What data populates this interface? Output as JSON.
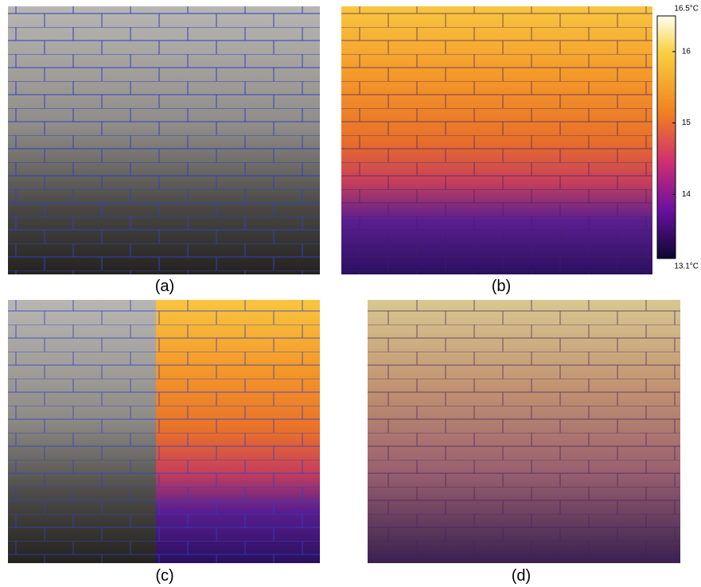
{
  "panels": [
    {
      "label": "(a)"
    },
    {
      "label": "(b)"
    },
    {
      "label": "(c)"
    },
    {
      "label": "(d)"
    }
  ],
  "colorbar": {
    "lim": [
      13.1,
      16.5
    ],
    "ticks": [
      {
        "value": 16.5,
        "label": "16.5°C"
      },
      16,
      15,
      14,
      {
        "value": 13.1,
        "label": "13.1°C"
      }
    ]
  }
}
